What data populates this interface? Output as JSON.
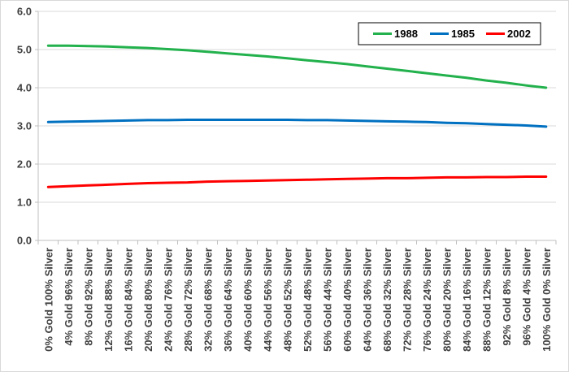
{
  "chart_data": {
    "type": "line",
    "title": "",
    "xlabel": "",
    "ylabel": "",
    "ylim": [
      0,
      6
    ],
    "yticks": [
      "0.0",
      "1.0",
      "2.0",
      "3.0",
      "4.0",
      "5.0",
      "6.0"
    ],
    "grid": "horizontal",
    "legend_position": "top-right",
    "x_labels": [
      "0% Gold 100% Silver",
      "4% Gold 96% Silver",
      "8% Gold 92% Silver",
      "12% Gold 88% Silver",
      "16% Gold 84% Silver",
      "20% Gold 80% Silver",
      "24% Gold 76% Silver",
      "28% Gold 72% Silver",
      "32% Gold 68% Silver",
      "36% Gold 64% Silver",
      "40% Gold 60% Silver",
      "44% Gold 56% Silver",
      "48% Gold 52% Silver",
      "52% Gold 48% Silver",
      "56% Gold 44% Silver",
      "60% Gold 40% Silver",
      "64% Gold 36% Silver",
      "68% Gold 32% Silver",
      "72% Gold 28% Silver",
      "76% Gold 24% Silver",
      "80% Gold 20% Silver",
      "84% Gold 16% Silver",
      "88% Gold 12% Silver",
      "92% Gold 8% Silver",
      "96% Gold 4% Silver",
      "100% Gold 0% Silver"
    ],
    "x": [
      0,
      4,
      8,
      12,
      16,
      20,
      24,
      28,
      32,
      36,
      40,
      44,
      48,
      52,
      56,
      60,
      64,
      68,
      72,
      76,
      80,
      84,
      88,
      92,
      96,
      100
    ],
    "series": [
      {
        "name": "1988",
        "color": "#22b14c",
        "values": [
          5.1,
          5.1,
          5.09,
          5.08,
          5.06,
          5.04,
          5.01,
          4.98,
          4.94,
          4.9,
          4.86,
          4.82,
          4.77,
          4.72,
          4.67,
          4.62,
          4.56,
          4.5,
          4.44,
          4.38,
          4.32,
          4.26,
          4.19,
          4.13,
          4.06,
          4.0
        ]
      },
      {
        "name": "1985",
        "color": "#0070c0",
        "values": [
          3.1,
          3.11,
          3.12,
          3.13,
          3.14,
          3.15,
          3.15,
          3.16,
          3.16,
          3.16,
          3.16,
          3.16,
          3.16,
          3.15,
          3.15,
          3.14,
          3.13,
          3.12,
          3.11,
          3.1,
          3.08,
          3.07,
          3.05,
          3.03,
          3.01,
          2.98
        ]
      },
      {
        "name": "2002",
        "color": "#ff0000",
        "values": [
          1.4,
          1.42,
          1.44,
          1.46,
          1.48,
          1.5,
          1.51,
          1.52,
          1.54,
          1.55,
          1.56,
          1.57,
          1.58,
          1.59,
          1.6,
          1.61,
          1.62,
          1.63,
          1.63,
          1.64,
          1.65,
          1.65,
          1.66,
          1.66,
          1.67,
          1.67
        ]
      }
    ],
    "legend_order": [
      "1988",
      "1985",
      "2002"
    ]
  }
}
